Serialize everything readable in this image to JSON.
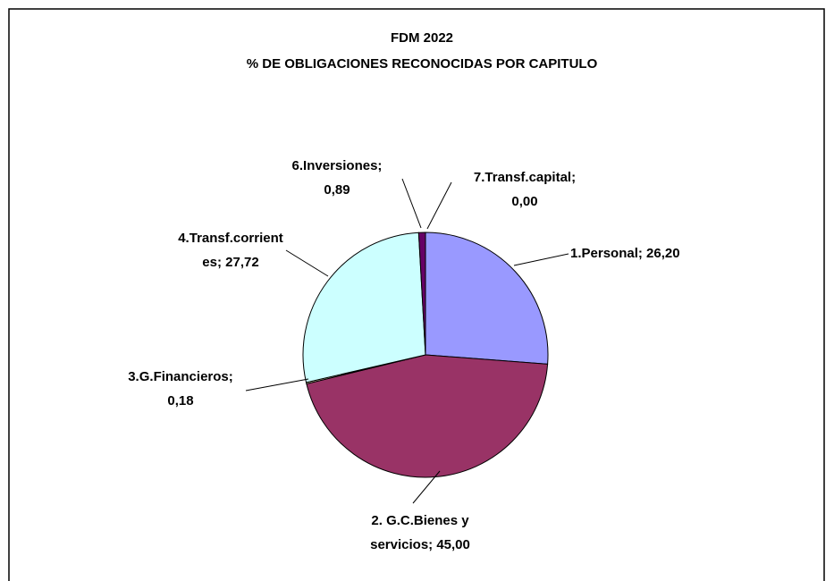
{
  "chart_data": {
    "type": "pie",
    "title": [
      "FDM 2022",
      "% DE OBLIGACIONES RECONOCIDAS POR CAPITULO"
    ],
    "values": [
      26.2,
      45.0,
      0.18,
      27.72,
      0.89,
      0.0
    ],
    "value_labels": [
      [
        "1.Personal; 26,20"
      ],
      [
        "2. G.C.Bienes y",
        "servicios; 45,00"
      ],
      [
        "3.G.Financieros;",
        "0,18"
      ],
      [
        "4.Transf.corrient",
        "es; 27,72"
      ],
      [
        "6.Inversiones;",
        "0,89"
      ],
      [
        "7.Transf.capital;",
        "0,00"
      ]
    ],
    "colors": [
      "#9999ff",
      "#993366",
      "#ffffcc",
      "#ccffff",
      "#660066",
      "#ff8080"
    ]
  }
}
